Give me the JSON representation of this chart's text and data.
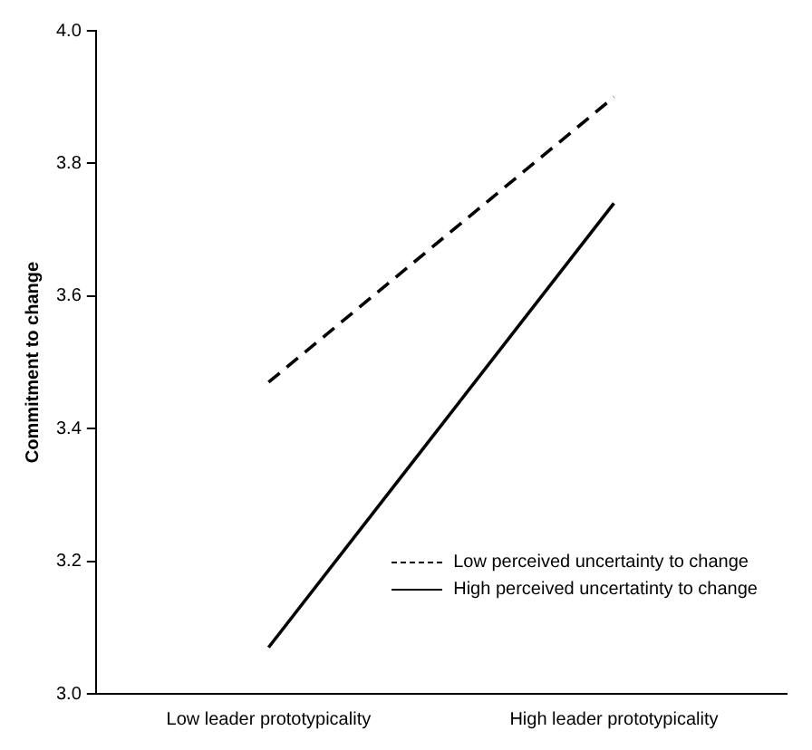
{
  "chart_data": {
    "type": "line",
    "ylabel": "Commitment to change",
    "categories": [
      "Low leader prototypicality",
      "High leader prototypicality"
    ],
    "series": [
      {
        "name": "Low perceived uncertainty to change",
        "color": "#000000",
        "line_style": "dashed",
        "values": [
          3.47,
          3.9
        ]
      },
      {
        "name": "High perceived uncertatinty to change",
        "color": "#000000",
        "line_style": "solid",
        "values": [
          3.07,
          3.74
        ]
      }
    ],
    "ylim": [
      3,
      4
    ],
    "yticks": [
      {
        "value": 3,
        "label": "3.0"
      },
      {
        "value": 3.2,
        "label": "3.2"
      },
      {
        "value": 3.4,
        "label": "3.4"
      },
      {
        "value": 3.6,
        "label": "3.6"
      },
      {
        "value": 3.8,
        "label": "3.8"
      },
      {
        "value": 4,
        "label": "4.0"
      }
    ],
    "grid": false,
    "legend": "bottom right",
    "marker": "none"
  }
}
